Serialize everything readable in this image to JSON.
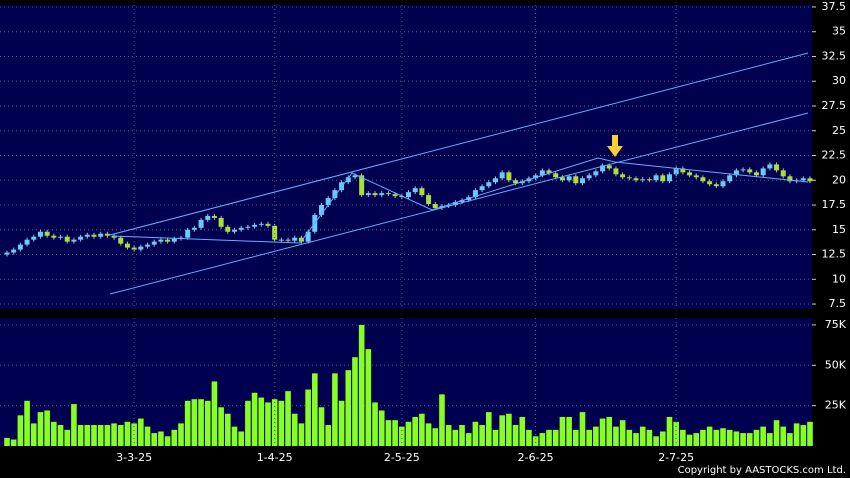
{
  "copyright": "Copyright by AASTOCKS.com Ltd.",
  "chart_data": [
    {
      "type": "candlestick",
      "up_color": "#66ccff",
      "down_color": "#a8e03a",
      "grid": true,
      "ylim": [
        7,
        37.7
      ],
      "yticks": [
        7.5,
        10,
        12.5,
        15,
        17.5,
        20,
        22.5,
        25,
        27.5,
        30,
        32.5,
        35,
        37.5
      ],
      "open": [
        12.5,
        12.7,
        13.0,
        13.5,
        14.0,
        14.3,
        14.8,
        14.4,
        14.2,
        14.3,
        13.8,
        14.0,
        14.3,
        14.5,
        14.3,
        14.6,
        14.4,
        14.2,
        13.6,
        13.2,
        13.0,
        13.3,
        13.5,
        13.8,
        14.0,
        13.8,
        14.1,
        14.2,
        15.0,
        15.2,
        16.0,
        16.4,
        16.2,
        15.3,
        14.8,
        15.0,
        15.2,
        15.3,
        15.5,
        15.6,
        15.4,
        14.0,
        14.0,
        13.9,
        14.2,
        13.8,
        14.8,
        16.5,
        17.5,
        18.2,
        19.0,
        19.8,
        20.3,
        20.5,
        18.5,
        18.7,
        18.5,
        18.7,
        18.6,
        18.4,
        18.3,
        18.8,
        19.2,
        18.5,
        17.6,
        17.2,
        17.4,
        17.5,
        17.8,
        18.0,
        18.3,
        19.0,
        19.4,
        19.8,
        20.2,
        20.8,
        20.0,
        19.7,
        19.9,
        20.2,
        20.5,
        21.0,
        20.7,
        20.3,
        20.0,
        20.4,
        19.7,
        20.2,
        20.5,
        20.9,
        21.5,
        21.2,
        20.6,
        20.3,
        20.2,
        20.0,
        20.1,
        20.0,
        20.5,
        19.9,
        20.6,
        21.2,
        20.8,
        20.5,
        20.3,
        19.9,
        19.6,
        19.4,
        19.9,
        20.5,
        21.0,
        21.1,
        20.8,
        20.5,
        21.2,
        21.6,
        21.0,
        20.4,
        19.9,
        20.0,
        20.2
      ],
      "high": [
        12.9,
        13.2,
        13.7,
        14.2,
        14.5,
        15.0,
        15.0,
        14.6,
        14.5,
        14.5,
        14.2,
        14.5,
        14.7,
        14.7,
        14.8,
        14.8,
        14.6,
        14.4,
        13.8,
        13.4,
        13.5,
        13.7,
        14.0,
        14.2,
        14.2,
        14.3,
        14.4,
        15.2,
        15.4,
        16.2,
        16.6,
        16.6,
        16.4,
        15.5,
        15.2,
        15.4,
        15.5,
        15.7,
        15.8,
        15.8,
        15.6,
        14.2,
        14.2,
        14.4,
        14.4,
        15.0,
        16.7,
        17.7,
        18.4,
        19.2,
        20.0,
        20.5,
        20.7,
        20.7,
        18.9,
        18.9,
        18.9,
        18.9,
        18.8,
        18.6,
        19.0,
        19.4,
        19.4,
        18.7,
        17.8,
        17.6,
        17.7,
        18.0,
        18.2,
        18.5,
        19.2,
        19.6,
        20.0,
        20.4,
        21.0,
        21.0,
        20.2,
        20.1,
        20.4,
        20.7,
        21.2,
        21.2,
        20.9,
        20.5,
        20.6,
        20.6,
        20.4,
        20.7,
        21.1,
        21.7,
        21.7,
        21.4,
        20.8,
        20.5,
        20.4,
        20.3,
        20.3,
        20.7,
        20.7,
        20.8,
        21.4,
        21.4,
        21.0,
        20.7,
        20.5,
        20.1,
        19.8,
        20.1,
        20.7,
        21.2,
        21.3,
        21.3,
        21.0,
        21.4,
        21.8,
        21.8,
        21.2,
        20.6,
        20.2,
        20.4,
        20.4
      ],
      "low": [
        12.3,
        12.5,
        12.8,
        13.3,
        13.8,
        14.1,
        14.2,
        14.0,
        14.0,
        13.6,
        13.6,
        13.8,
        14.1,
        14.1,
        14.1,
        14.2,
        14.0,
        13.4,
        13.0,
        12.8,
        12.8,
        13.1,
        13.3,
        13.6,
        13.6,
        13.6,
        13.9,
        14.0,
        14.8,
        15.0,
        15.8,
        16.0,
        15.1,
        14.6,
        14.6,
        14.8,
        15.0,
        15.1,
        15.3,
        15.2,
        13.8,
        13.8,
        13.7,
        13.7,
        13.6,
        13.6,
        14.6,
        16.3,
        17.3,
        18.0,
        18.8,
        19.6,
        20.1,
        18.3,
        18.3,
        18.3,
        18.3,
        18.4,
        18.2,
        18.1,
        18.1,
        18.6,
        18.3,
        17.4,
        17.0,
        17.0,
        17.2,
        17.3,
        17.6,
        17.8,
        18.1,
        18.8,
        19.2,
        19.6,
        20.0,
        19.8,
        19.5,
        19.5,
        19.7,
        20.0,
        20.3,
        20.5,
        20.1,
        19.8,
        19.8,
        19.5,
        19.5,
        20.0,
        20.3,
        20.7,
        21.0,
        20.4,
        20.1,
        20.0,
        19.8,
        19.8,
        19.8,
        19.8,
        19.7,
        19.7,
        20.4,
        20.6,
        20.3,
        20.1,
        19.7,
        19.4,
        19.2,
        19.2,
        19.7,
        20.3,
        20.8,
        20.6,
        20.3,
        20.3,
        21.0,
        20.8,
        20.2,
        19.7,
        19.7,
        19.8,
        19.7
      ],
      "close": [
        12.7,
        13.0,
        13.5,
        14.0,
        14.3,
        14.8,
        14.4,
        14.2,
        14.3,
        13.8,
        14.0,
        14.3,
        14.5,
        14.3,
        14.6,
        14.4,
        14.2,
        13.6,
        13.2,
        13.0,
        13.3,
        13.5,
        13.8,
        14.0,
        13.8,
        14.1,
        14.2,
        15.0,
        15.2,
        16.0,
        16.4,
        16.2,
        15.3,
        14.8,
        15.0,
        15.2,
        15.3,
        15.5,
        15.6,
        15.4,
        14.0,
        14.0,
        13.9,
        14.2,
        13.8,
        14.8,
        16.5,
        17.5,
        18.2,
        19.0,
        19.8,
        20.3,
        20.5,
        18.5,
        18.7,
        18.5,
        18.7,
        18.6,
        18.4,
        18.3,
        18.8,
        19.2,
        18.5,
        17.6,
        17.2,
        17.4,
        17.5,
        17.8,
        18.0,
        18.3,
        19.0,
        19.4,
        19.8,
        20.2,
        20.8,
        20.0,
        19.7,
        19.9,
        20.2,
        20.5,
        21.0,
        20.7,
        20.3,
        20.0,
        20.4,
        19.7,
        20.2,
        20.5,
        20.9,
        21.5,
        21.2,
        20.6,
        20.3,
        20.2,
        20.0,
        20.1,
        20.0,
        20.5,
        19.9,
        20.6,
        21.2,
        20.8,
        20.5,
        20.3,
        19.9,
        19.6,
        19.4,
        19.9,
        20.5,
        21.0,
        21.1,
        20.8,
        20.5,
        21.2,
        21.6,
        21.0,
        20.4,
        19.9,
        20.0,
        20.2,
        19.9
      ]
    },
    {
      "type": "bar",
      "color": "#88ff22",
      "grid": true,
      "ylim": [
        0,
        79300
      ],
      "yticks": [
        {
          "value": 25000,
          "label": "25K"
        },
        {
          "value": 50000,
          "label": "50K"
        },
        {
          "value": 75000,
          "label": "75K"
        }
      ],
      "categories": [
        null,
        null,
        null,
        null,
        null,
        null,
        null,
        null,
        null,
        null,
        null,
        null,
        null,
        null,
        null,
        null,
        null,
        null,
        null,
        "3-3-25",
        null,
        null,
        null,
        null,
        null,
        null,
        null,
        null,
        null,
        null,
        null,
        null,
        null,
        null,
        null,
        null,
        null,
        null,
        null,
        null,
        "1-4-25",
        null,
        null,
        null,
        null,
        null,
        null,
        null,
        null,
        null,
        null,
        null,
        null,
        null,
        null,
        null,
        null,
        null,
        null,
        "2-5-25",
        null,
        null,
        null,
        null,
        null,
        null,
        null,
        null,
        null,
        null,
        null,
        null,
        null,
        null,
        null,
        null,
        null,
        null,
        null,
        "2-6-25",
        null,
        null,
        null,
        null,
        null,
        null,
        null,
        null,
        null,
        null,
        null,
        null,
        null,
        null,
        null,
        null,
        null,
        null,
        null,
        null,
        "2-7-25",
        null,
        null,
        null,
        null,
        null,
        null,
        null,
        null,
        null,
        null,
        null,
        null,
        null,
        null,
        null,
        null,
        null,
        null,
        null,
        null
      ],
      "values": [
        5000,
        4000,
        19000,
        28000,
        14000,
        21000,
        22000,
        15000,
        13000,
        10000,
        26000,
        13000,
        13000,
        13000,
        13000,
        13000,
        14000,
        13000,
        15000,
        14000,
        17000,
        12000,
        8000,
        9000,
        6000,
        10000,
        14000,
        28000,
        29000,
        29000,
        28000,
        40000,
        24000,
        20000,
        12000,
        9000,
        28000,
        33000,
        30000,
        27000,
        29000,
        28000,
        34000,
        20000,
        14000,
        35000,
        45000,
        24000,
        13000,
        45000,
        28000,
        47000,
        55000,
        75000,
        60000,
        27000,
        22000,
        16000,
        16000,
        12000,
        15000,
        18000,
        20000,
        14000,
        11000,
        32000,
        13000,
        10000,
        13000,
        8000,
        15000,
        13000,
        21000,
        10000,
        19000,
        20000,
        13000,
        18000,
        10000,
        6000,
        8000,
        10000,
        10000,
        18000,
        18000,
        10000,
        21000,
        10000,
        12000,
        17000,
        18000,
        12000,
        16000,
        10000,
        8000,
        12000,
        10000,
        6000,
        9000,
        18000,
        15000,
        10000,
        7000,
        8000,
        10000,
        12000,
        10000,
        11000,
        10000,
        9000,
        8000,
        8000,
        10000,
        12000,
        8000,
        16000,
        12000,
        8000,
        14000,
        13000,
        15000
      ]
    }
  ]
}
